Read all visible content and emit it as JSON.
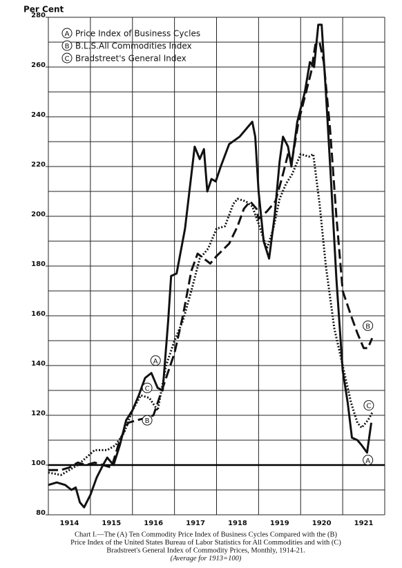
{
  "chart_data": {
    "type": "line",
    "y_label": "Per Cent",
    "xlim": [
      1914,
      1922
    ],
    "ylim": [
      80,
      280
    ],
    "xticks": [
      {
        "value": 1914.5,
        "label": "1914"
      },
      {
        "value": 1915.5,
        "label": "1915"
      },
      {
        "value": 1916.5,
        "label": "1916"
      },
      {
        "value": 1917.5,
        "label": "1917"
      },
      {
        "value": 1918.5,
        "label": "1918"
      },
      {
        "value": 1919.5,
        "label": "1919"
      },
      {
        "value": 1920.5,
        "label": "1920"
      },
      {
        "value": 1921.5,
        "label": "1921"
      }
    ],
    "yticks": [
      80,
      100,
      120,
      140,
      160,
      180,
      200,
      220,
      240,
      260,
      280
    ],
    "grid": true,
    "reference_line": 100,
    "series": [
      {
        "name": "Price Index of Business Cycles",
        "marker_label": "A",
        "color": "#111111",
        "style": "solid",
        "x": [
          1914.0,
          1914.2,
          1914.4,
          1914.55,
          1914.65,
          1914.75,
          1914.85,
          1915.0,
          1915.15,
          1915.3,
          1915.4,
          1915.55,
          1915.7,
          1915.85,
          1916.0,
          1916.15,
          1916.3,
          1916.45,
          1916.6,
          1916.72,
          1916.85,
          1916.92,
          1917.05,
          1917.25,
          1917.48,
          1917.6,
          1917.7,
          1917.78,
          1917.88,
          1917.98,
          1918.1,
          1918.3,
          1918.55,
          1918.75,
          1918.85,
          1918.92,
          1919.0,
          1919.12,
          1919.25,
          1919.38,
          1919.5,
          1919.58,
          1919.7,
          1919.78,
          1919.92,
          1920.1,
          1920.22,
          1920.32,
          1920.42,
          1920.5,
          1920.6,
          1920.72,
          1920.85,
          1921.0,
          1921.12,
          1921.22,
          1921.35,
          1921.45,
          1921.58,
          1921.68
        ],
        "values": [
          92,
          93,
          92,
          90,
          91,
          85,
          83,
          88,
          95,
          100,
          103,
          100,
          108,
          118,
          122,
          128,
          135,
          137,
          131,
          130,
          158,
          176,
          177,
          195,
          228,
          223,
          227,
          210,
          215,
          214,
          220,
          229,
          232,
          236,
          238,
          232,
          210,
          190,
          183,
          200,
          222,
          232,
          228,
          220,
          238,
          250,
          262,
          260,
          277,
          277,
          250,
          215,
          175,
          138,
          125,
          111,
          110,
          108,
          105,
          117
        ]
      },
      {
        "name": "B.L.S.All Commodities Index",
        "marker_label": "B",
        "color": "#111111",
        "style": "dashed",
        "x": [
          1914.0,
          1914.3,
          1914.5,
          1914.7,
          1914.9,
          1915.1,
          1915.3,
          1915.5,
          1915.7,
          1915.9,
          1916.1,
          1916.34,
          1916.5,
          1916.8,
          1917.0,
          1917.2,
          1917.4,
          1917.55,
          1917.7,
          1917.85,
          1918.0,
          1918.3,
          1918.5,
          1918.65,
          1918.8,
          1918.95,
          1919.0,
          1919.2,
          1919.4,
          1919.55,
          1919.7,
          1919.8,
          1919.95,
          1920.1,
          1920.25,
          1920.35,
          1920.45,
          1920.55,
          1920.7,
          1920.85,
          1921.0,
          1921.2,
          1921.35,
          1921.5,
          1921.6,
          1921.7
        ],
        "values": [
          98,
          98,
          99,
          101,
          100,
          101,
          100,
          99,
          110,
          117,
          118,
          119,
          120,
          135,
          145,
          160,
          178,
          185,
          183,
          181,
          184,
          189,
          196,
          203,
          206,
          203,
          199,
          202,
          206,
          215,
          225,
          223,
          238,
          248,
          258,
          269,
          270,
          262,
          235,
          200,
          170,
          160,
          153,
          147,
          147,
          151
        ]
      },
      {
        "name": "Bradstreet's General Index",
        "marker_label": "C",
        "color": "#111111",
        "style": "dotted",
        "x": [
          1914.0,
          1914.3,
          1914.5,
          1914.7,
          1914.9,
          1915.1,
          1915.4,
          1915.6,
          1915.8,
          1916.0,
          1916.2,
          1916.4,
          1916.6,
          1916.8,
          1917.0,
          1917.2,
          1917.4,
          1917.6,
          1917.8,
          1918.0,
          1918.2,
          1918.4,
          1918.5,
          1918.7,
          1918.85,
          1919.0,
          1919.2,
          1919.35,
          1919.5,
          1919.65,
          1919.8,
          1920.0,
          1920.2,
          1920.3,
          1920.45,
          1920.6,
          1920.8,
          1921.0,
          1921.2,
          1921.35,
          1921.45,
          1921.6,
          1921.7
        ],
        "values": [
          97,
          96,
          98,
          100,
          103,
          106,
          106,
          108,
          113,
          122,
          128,
          127,
          122,
          140,
          150,
          158,
          170,
          183,
          187,
          195,
          196,
          205,
          207,
          206,
          204,
          197,
          187,
          195,
          207,
          213,
          217,
          225,
          224,
          225,
          205,
          180,
          155,
          140,
          125,
          117,
          115,
          118,
          121
        ]
      }
    ],
    "caption": [
      "Chart I.—The (A) Ten Commodity Price Index of Business Cycles Compared with the (B)",
      "Price Index of the United States Bureau of Labor Statistics for All Commodities and with (C)",
      "Bradstreet's General Index of Commodity Prices, Monthly, 1914-21.",
      "(Average for 1913=100)"
    ]
  }
}
